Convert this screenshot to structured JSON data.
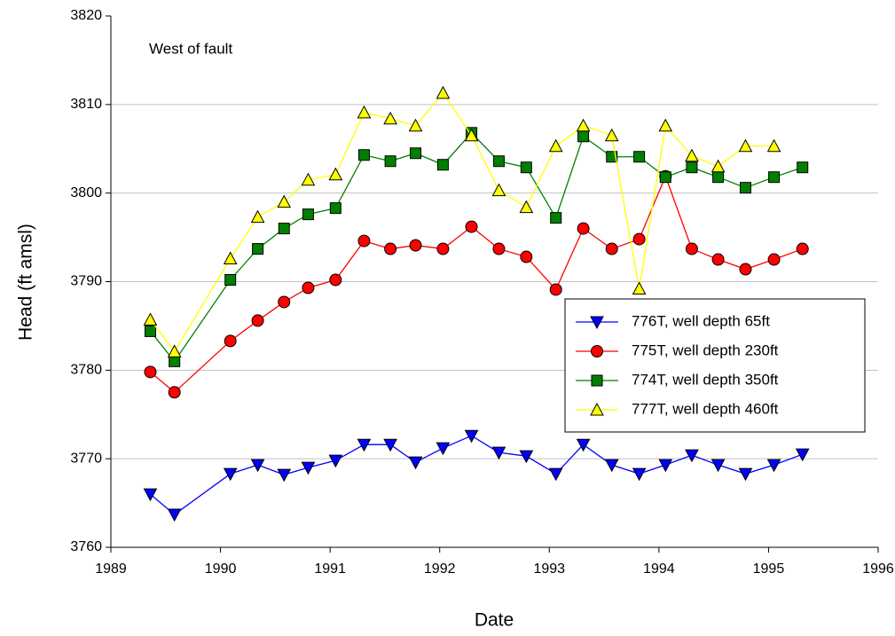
{
  "chart_data": {
    "type": "line",
    "annotation": "West of fault",
    "x_label": "Date",
    "y_label": "Head (ft amsl)",
    "xlim": [
      1989,
      1996
    ],
    "xticks": [
      1989,
      1990,
      1991,
      1992,
      1993,
      1994,
      1995,
      1996
    ],
    "ylim": [
      3760,
      3820
    ],
    "yticks": [
      3760,
      3770,
      3780,
      3790,
      3800,
      3810,
      3820
    ],
    "grid": true,
    "legend_position": "right",
    "x": [
      1989.36,
      1989.58,
      1990.09,
      1990.34,
      1990.58,
      1990.8,
      1991.05,
      1991.31,
      1991.55,
      1991.78,
      1992.03,
      1992.29,
      1992.54,
      1992.79,
      1993.06,
      1993.31,
      1993.57,
      1993.82,
      1994.06,
      1994.3,
      1994.54,
      1994.79,
      1995.05,
      1995.31
    ],
    "series": [
      {
        "name": "776T,  well depth 65ft",
        "color": "#0000ff",
        "line_color": "#0000ff",
        "marker": "triangle-down",
        "values": [
          3766,
          3763.7,
          3768.3,
          3769.3,
          3768.2,
          3769,
          3769.8,
          3771.6,
          3771.6,
          3769.6,
          3771.2,
          3772.6,
          3770.7,
          3770.3,
          3768.3,
          3771.6,
          3769.3,
          3768.3,
          3769.3,
          3770.4,
          3769.3,
          3768.3,
          3769.3,
          3770.5
        ]
      },
      {
        "name": "775T, well depth 230ft",
        "color": "#ff0000",
        "line_color": "#ff0000",
        "marker": "circle",
        "values": [
          3779.8,
          3777.5,
          3783.3,
          3785.6,
          3787.7,
          3789.3,
          3790.2,
          3794.6,
          3793.7,
          3794.1,
          3793.7,
          3796.2,
          3793.7,
          3792.8,
          3789.1,
          3796,
          3793.7,
          3794.8,
          3801.9,
          3793.7,
          3792.5,
          3791.4,
          3792.5,
          3793.7
        ]
      },
      {
        "name": "774T, well depth 350ft",
        "color": "#008000",
        "line_color": "#008000",
        "marker": "square",
        "values": [
          3784.4,
          3781,
          3790.2,
          3793.7,
          3796,
          3797.6,
          3798.3,
          3804.3,
          3803.6,
          3804.5,
          3803.2,
          3806.8,
          3803.6,
          3802.9,
          3797.2,
          3806.4,
          3804.1,
          3804.1,
          3801.8,
          3802.9,
          3801.8,
          3800.6,
          3801.8,
          3802.9
        ]
      },
      {
        "name": "777T, well depth 460ft",
        "color": "#ffff00",
        "line_color": "#ffff00",
        "marker": "triangle-up",
        "values": [
          3785.7,
          3782.1,
          3792.6,
          3797.3,
          3799,
          3801.5,
          3802.1,
          3809.1,
          3808.4,
          3807.6,
          3811.3,
          3806.5,
          3800.3,
          3798.4,
          3805.3,
          3807.6,
          3806.5,
          3789.2,
          3807.6,
          3804.2,
          3803,
          3805.3,
          3805.3,
          null
        ]
      }
    ]
  }
}
